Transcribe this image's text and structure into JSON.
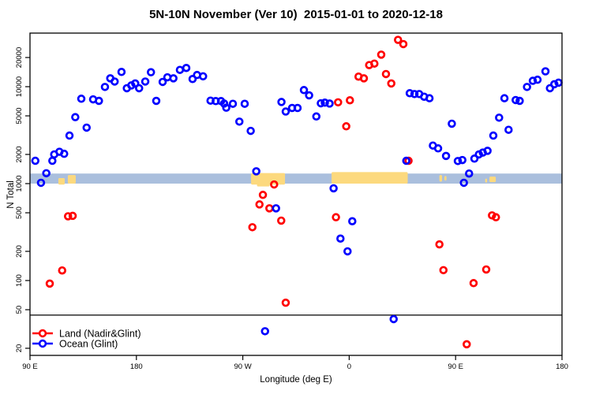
{
  "chart_data": {
    "type": "scatter",
    "title": "5N-10N November (Ver 10)  2015-01-01 to 2020-12-18",
    "xlabel": "Longitude (deg E)",
    "ylabel": "N Total",
    "x_axis": {
      "max_deg": 450,
      "ticks": [
        {
          "deg": 0,
          "label": "90 E"
        },
        {
          "deg": 90,
          "label": "180"
        },
        {
          "deg": 180,
          "label": "90 W"
        },
        {
          "deg": 270,
          "label": "0"
        },
        {
          "deg": 360,
          "label": "90 E"
        },
        {
          "deg": 450,
          "label": "180"
        }
      ]
    },
    "y_axis": {
      "scale": "log",
      "ticks": [
        20,
        50,
        100,
        200,
        500,
        1000,
        2000,
        5000,
        10000,
        20000
      ],
      "range": [
        17,
        36000
      ]
    },
    "hline_n": 44,
    "band": {
      "n_from": 1000,
      "n_to": 1270,
      "color": "#aabfdd"
    },
    "land_patches": {
      "color": "#fcd97e",
      "rects": [
        {
          "d1": 24.0,
          "d2": 29.4,
          "f1": -0.1,
          "f2": 0.55
        },
        {
          "d1": 32.0,
          "d2": 38.7,
          "f1": 0.0,
          "f2": 0.85
        },
        {
          "d1": 187.0,
          "d2": 215.7,
          "f1": -0.1,
          "f2": 1.05
        },
        {
          "d1": 192.0,
          "d2": 202.7,
          "f1": -0.28,
          "f2": 0.0
        },
        {
          "d1": 255.1,
          "d2": 319.5,
          "f1": 0.0,
          "f2": 1.15
        },
        {
          "d1": 346.3,
          "d2": 348.5,
          "f1": 0.2,
          "f2": 0.85
        },
        {
          "d1": 350.5,
          "d2": 352.3,
          "f1": 0.3,
          "f2": 0.75
        },
        {
          "d1": 385.0,
          "d2": 386.6,
          "f1": 0.1,
          "f2": 0.5
        },
        {
          "d1": 388.6,
          "d2": 394.0,
          "f1": 0.15,
          "f2": 0.7
        }
      ]
    },
    "series": [
      {
        "name": "Land (Nadir&Glint)",
        "color": "#ff0000",
        "points": [
          [
            16.7,
            93
          ],
          [
            27.2,
            127
          ],
          [
            32.2,
            460
          ],
          [
            36.1,
            465
          ],
          [
            188.1,
            355
          ],
          [
            194.1,
            610
          ],
          [
            197.0,
            765
          ],
          [
            202.5,
            556
          ],
          [
            206.5,
            980
          ],
          [
            212.5,
            415
          ],
          [
            216.3,
            59
          ],
          [
            258.8,
            450
          ],
          [
            260.6,
            6900
          ],
          [
            267.5,
            3900
          ],
          [
            270.6,
            7240
          ],
          [
            277.9,
            12700
          ],
          [
            282.4,
            12200
          ],
          [
            286.9,
            16700
          ],
          [
            291.3,
            17300
          ],
          [
            297.1,
            21400
          ],
          [
            301.1,
            13500
          ],
          [
            305.6,
            10800
          ],
          [
            311.3,
            30400
          ],
          [
            315.8,
            27500
          ],
          [
            320.2,
            1720
          ],
          [
            346.3,
            236
          ],
          [
            349.7,
            128
          ],
          [
            369.4,
            22
          ],
          [
            375.2,
            94
          ],
          [
            385.9,
            130
          ],
          [
            390.8,
            470
          ],
          [
            394.1,
            450
          ]
        ]
      },
      {
        "name": "Ocean (Glint)",
        "color": "#0000ff",
        "points": [
          [
            4.5,
            1720
          ],
          [
            9.3,
            1020
          ],
          [
            13.8,
            1280
          ],
          [
            18.9,
            1720
          ],
          [
            20.5,
            2000
          ],
          [
            24.9,
            2130
          ],
          [
            28.9,
            2030
          ],
          [
            33.4,
            3130
          ],
          [
            38.3,
            4850
          ],
          [
            43.4,
            7510
          ],
          [
            47.9,
            3780
          ],
          [
            53.4,
            7400
          ],
          [
            58.3,
            7140
          ],
          [
            63.4,
            9940
          ],
          [
            67.9,
            12200
          ],
          [
            71.6,
            11300
          ],
          [
            77.4,
            14200
          ],
          [
            81.9,
            9640
          ],
          [
            85.7,
            10300
          ],
          [
            89.0,
            10800
          ],
          [
            92.3,
            9640
          ],
          [
            97.5,
            11300
          ],
          [
            102.3,
            14100
          ],
          [
            106.8,
            7140
          ],
          [
            112.2,
            11200
          ],
          [
            116.2,
            12500
          ],
          [
            121.3,
            12200
          ],
          [
            126.8,
            14900
          ],
          [
            132.2,
            15600
          ],
          [
            137.5,
            12000
          ],
          [
            141.3,
            13200
          ],
          [
            146.4,
            12800
          ],
          [
            152.7,
            7180
          ],
          [
            157.1,
            7100
          ],
          [
            161.6,
            7100
          ],
          [
            164.2,
            6700
          ],
          [
            166.0,
            6070
          ],
          [
            171.6,
            6660
          ],
          [
            177.1,
            4360
          ],
          [
            181.6,
            6660
          ],
          [
            186.7,
            3500
          ],
          [
            191.4,
            1340
          ],
          [
            198.8,
            30
          ],
          [
            208.1,
            556
          ],
          [
            212.7,
            6950
          ],
          [
            216.3,
            5540
          ],
          [
            221.7,
            6030
          ],
          [
            226.3,
            6030
          ],
          [
            231.7,
            9230
          ],
          [
            236.1,
            8140
          ],
          [
            242.2,
            4930
          ],
          [
            246.0,
            6740
          ],
          [
            249.4,
            6840
          ],
          [
            253.4,
            6700
          ],
          [
            256.8,
            894
          ],
          [
            262.6,
            271
          ],
          [
            268.6,
            200
          ],
          [
            272.6,
            409
          ],
          [
            307.6,
            40
          ],
          [
            318.3,
            1720
          ],
          [
            321.2,
            8560
          ],
          [
            325.2,
            8400
          ],
          [
            329.2,
            8400
          ],
          [
            333.4,
            7880
          ],
          [
            337.9,
            7600
          ],
          [
            340.8,
            2470
          ],
          [
            345.2,
            2310
          ],
          [
            351.9,
            1930
          ],
          [
            356.8,
            4150
          ],
          [
            361.9,
            1710
          ],
          [
            365.7,
            1750
          ],
          [
            367.0,
            1020
          ],
          [
            371.4,
            1270
          ],
          [
            375.9,
            1810
          ],
          [
            379.7,
            2000
          ],
          [
            383.0,
            2090
          ],
          [
            387.0,
            2180
          ],
          [
            391.9,
            3130
          ],
          [
            396.8,
            4790
          ],
          [
            401.3,
            7600
          ],
          [
            404.8,
            3590
          ],
          [
            410.8,
            7280
          ],
          [
            414.2,
            7140
          ],
          [
            420.4,
            9940
          ],
          [
            425.3,
            11500
          ],
          [
            429.3,
            11800
          ],
          [
            436.0,
            14400
          ],
          [
            439.8,
            9640
          ],
          [
            443.5,
            10600
          ],
          [
            447.1,
            11000
          ]
        ]
      }
    ],
    "legend": {
      "position": "bottom-left",
      "entries": [
        "Land (Nadir&Glint)",
        "Ocean (Glint)"
      ]
    }
  }
}
